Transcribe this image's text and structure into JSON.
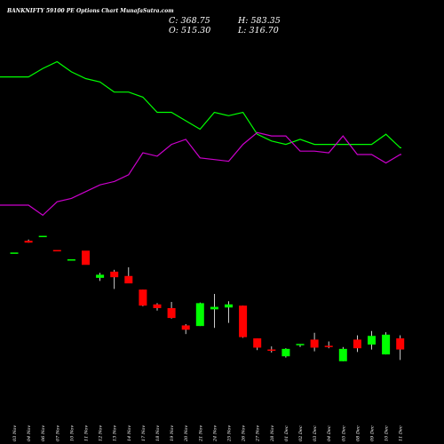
{
  "chart_data": {
    "type": "candlestick",
    "title": "BANKNIFTY 59100 PE Options Chart MunafaSutra.com",
    "ohlc_readout": {
      "close_text": "C: 368.75",
      "open_text": "O: 515.30",
      "high_text": "H: 583.35",
      "low_text": "L: 316.70"
    },
    "x_ticks": [
      "03 Nov",
      "04 Nov",
      "06 Nov",
      "07 Nov",
      "10 Nov",
      "11 Nov",
      "12 Nov",
      "13 Nov",
      "14 Nov",
      "17 Nov",
      "18 Nov",
      "19 Nov",
      "20 Nov",
      "21 Nov",
      "24 Nov",
      "25 Nov",
      "26 Nov",
      "27 Nov",
      "28 Nov",
      "01 Dec",
      "02 Dec",
      "03 Dec",
      "04 Dec",
      "05 Dec",
      "08 Dec",
      "09 Dec",
      "10 Dec",
      "11 Dec"
    ],
    "price_range": [
      0,
      230
    ],
    "candles": [
      {
        "date": "03 Nov",
        "open": 195,
        "high": 195,
        "low": 195,
        "close": 195
      },
      {
        "date": "04 Nov",
        "open": 214,
        "high": 216,
        "low": 211,
        "close": 211
      },
      {
        "date": "06 Nov",
        "open": 222,
        "high": 222,
        "low": 222,
        "close": 222
      },
      {
        "date": "07 Nov",
        "open": 199,
        "high": 199,
        "low": 199,
        "close": 199
      },
      {
        "date": "10 Nov",
        "open": 184,
        "high": 184,
        "low": 184,
        "close": 184
      },
      {
        "date": "11 Nov",
        "open": 198,
        "high": 198,
        "low": 175,
        "close": 175
      },
      {
        "date": "12 Nov",
        "open": 154,
        "high": 162,
        "low": 149,
        "close": 159
      },
      {
        "date": "13 Nov",
        "open": 164,
        "high": 167,
        "low": 136,
        "close": 155
      },
      {
        "date": "14 Nov",
        "open": 157,
        "high": 171,
        "low": 146,
        "close": 145
      },
      {
        "date": "17 Nov",
        "open": 135,
        "high": 135,
        "low": 108,
        "close": 109
      },
      {
        "date": "18 Nov",
        "open": 111,
        "high": 113,
        "low": 101,
        "close": 105
      },
      {
        "date": "19 Nov",
        "open": 105,
        "high": 115,
        "low": 88,
        "close": 89
      },
      {
        "date": "20 Nov",
        "open": 77,
        "high": 79,
        "low": 63,
        "close": 70
      },
      {
        "date": "21 Nov",
        "open": 76,
        "high": 114,
        "low": 76,
        "close": 113
      },
      {
        "date": "24 Nov",
        "open": 103,
        "high": 128,
        "low": 73,
        "close": 107
      },
      {
        "date": "25 Nov",
        "open": 106,
        "high": 116,
        "low": 81,
        "close": 111
      },
      {
        "date": "26 Nov",
        "open": 109,
        "high": 109,
        "low": 57,
        "close": 58
      },
      {
        "date": "27 Nov",
        "open": 56,
        "high": 56,
        "low": 37,
        "close": 41
      },
      {
        "date": "28 Nov",
        "open": 38,
        "high": 43,
        "low": 33,
        "close": 36
      },
      {
        "date": "01 Dec",
        "open": 27,
        "high": 40,
        "low": 25,
        "close": 39
      },
      {
        "date": "02 Dec",
        "open": 45,
        "high": 46,
        "low": 42,
        "close": 47
      },
      {
        "date": "03 Dec",
        "open": 54,
        "high": 65,
        "low": 35,
        "close": 41
      },
      {
        "date": "04 Dec",
        "open": 44,
        "high": 51,
        "low": 40,
        "close": 43
      },
      {
        "date": "05 Dec",
        "open": 19,
        "high": 42,
        "low": 19,
        "close": 39
      },
      {
        "date": "08 Dec",
        "open": 54,
        "high": 61,
        "low": 34,
        "close": 40
      },
      {
        "date": "09 Dec",
        "open": 46,
        "high": 68,
        "low": 38,
        "close": 60
      },
      {
        "date": "10 Dec",
        "open": 30,
        "high": 66,
        "low": 30,
        "close": 62
      },
      {
        "date": "11 Dec",
        "open": 56,
        "high": 61,
        "low": 21,
        "close": 38
      }
    ],
    "indicator_range": [
      0,
      100
    ],
    "series": [
      {
        "color": "#00ff00",
        "values": [
          86,
          86,
          91,
          95,
          89,
          85,
          83,
          77,
          77,
          74,
          65,
          65,
          60,
          55,
          65,
          63,
          65,
          52,
          48,
          46,
          49,
          46,
          46,
          46,
          46,
          46,
          52,
          44
        ]
      },
      {
        "color": "#cc00cc",
        "values": [
          10,
          10,
          4,
          12,
          14,
          18,
          22,
          24,
          28,
          41,
          39,
          46,
          49,
          38,
          37,
          36,
          46,
          53,
          51,
          51,
          42,
          42,
          41,
          51,
          40,
          40,
          35,
          40
        ]
      }
    ],
    "colors": {
      "background": "#000000",
      "up": "#00ff00",
      "down": "#ff0000",
      "wick": "#ffffff",
      "text": "#ffffff"
    },
    "grid": false,
    "legend": "none"
  }
}
